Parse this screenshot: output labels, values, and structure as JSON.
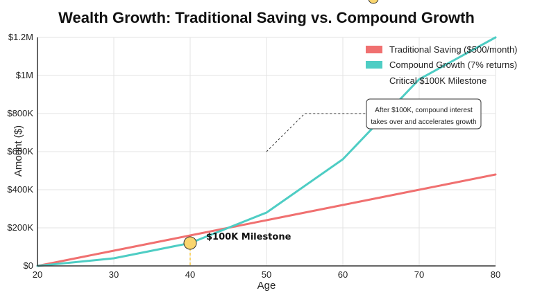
{
  "chart_data": {
    "type": "line",
    "title": "Wealth Growth: Traditional Saving vs. Compound Growth",
    "xlabel": "Age",
    "ylabel": "Amount ($)",
    "xlim": [
      20,
      80
    ],
    "ylim": [
      0,
      1200000
    ],
    "x_ticks": [
      20,
      30,
      40,
      50,
      60,
      70,
      80
    ],
    "x_tick_labels": [
      "20",
      "30",
      "40",
      "50",
      "60",
      "70",
      "80"
    ],
    "y_ticks": [
      0,
      200000,
      400000,
      600000,
      800000,
      1000000,
      1200000
    ],
    "y_tick_labels": [
      "$0",
      "$200K",
      "$400K",
      "$600K",
      "$800K",
      "$1M",
      "$1.2M"
    ],
    "grid": true,
    "legend_position": "top-right",
    "series": [
      {
        "name": "Traditional Saving ($500/month)",
        "color": "#f07070",
        "x": [
          20,
          30,
          40,
          50,
          60,
          70,
          80
        ],
        "y": [
          0,
          80000,
          160000,
          240000,
          320000,
          400000,
          480000
        ]
      },
      {
        "name": "Compound Growth (7% returns)",
        "color": "#4ecdc4",
        "x": [
          20,
          30,
          40,
          50,
          60,
          70,
          80
        ],
        "y": [
          0,
          40000,
          120000,
          280000,
          560000,
          980000,
          1200000
        ]
      }
    ],
    "milestone": {
      "legend_label": "Critical $100K Milestone",
      "label": "$100K Milestone",
      "x": 40,
      "y": 120000,
      "color": "#f9d56e"
    },
    "callout": {
      "lines": [
        "After $100K, compound interest",
        "takes over and accelerates growth"
      ],
      "arrow_points": [
        [
          50,
          600000
        ],
        [
          55,
          800000
        ],
        [
          63,
          800000
        ]
      ]
    }
  }
}
